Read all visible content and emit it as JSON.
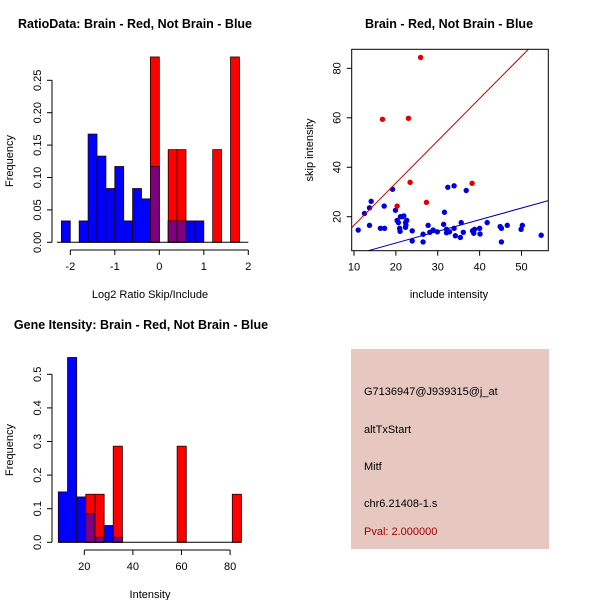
{
  "colors": {
    "brain": "#ff0000",
    "not_brain": "#0000ff",
    "overlap": "#7f007f",
    "panel_bg": "#e6c8c0",
    "pval": "#a00000"
  },
  "chart_data": [
    {
      "type": "bar",
      "title": "RatioData: Brain - Red, Not Brain - Blue",
      "xlabel": "Log2 Ratio Skip/Include",
      "ylabel": "Frequency",
      "xlim": [
        -2.3,
        2.0
      ],
      "ylim": [
        0,
        0.25
      ],
      "xticks": [
        -2,
        -1,
        0,
        1,
        2
      ],
      "xtick_labels": [
        "-2",
        "-1",
        "0",
        "1",
        "2"
      ],
      "yticks": [
        0,
        0.05,
        0.1,
        0.15,
        0.2,
        0.25
      ],
      "ytick_labels": [
        "0.00",
        "0.05",
        "0.10",
        "0.15",
        "0.20",
        "0.25"
      ],
      "series": [
        {
          "name": "Not Brain",
          "color": "blue",
          "bin_width": 0.2,
          "bin_starts": [
            -2.2,
            -1.8,
            -1.6,
            -1.4,
            -1.2,
            -1.0,
            -0.8,
            -0.6,
            -0.4,
            -0.2,
            0.2,
            0.4,
            0.6,
            0.8
          ],
          "values": [
            0.033,
            0.033,
            0.167,
            0.133,
            0.083,
            0.117,
            0.033,
            0.083,
            0.067,
            0.117,
            0.033,
            0.033,
            0.033,
            0.033
          ]
        },
        {
          "name": "Brain",
          "color": "red",
          "bin_width": 0.2,
          "bin_starts": [
            -0.2,
            0.2,
            0.4,
            1.2,
            1.6
          ],
          "values": [
            0.286,
            0.143,
            0.143,
            0.143,
            0.286
          ]
        }
      ]
    },
    {
      "type": "scatter",
      "title": "Brain - Red, Not Brain - Blue",
      "xlabel": "include intensity",
      "ylabel": "skip intensity",
      "xlim": [
        9.45,
        56.4
      ],
      "ylim": [
        6.25,
        87.7
      ],
      "xticks": [
        10,
        20,
        30,
        40,
        50
      ],
      "xtick_labels": [
        "10",
        "20",
        "30",
        "40",
        "50"
      ],
      "yticks": [
        20,
        40,
        60,
        80
      ],
      "ytick_labels": [
        "20",
        "40",
        "60",
        "80"
      ],
      "lines": [
        {
          "name": "Brain fit",
          "color": "#c00000",
          "slope": 1.71,
          "intercept": -0.6
        },
        {
          "name": "Not Brain fit",
          "color": "#0000aa",
          "slope": 0.471,
          "intercept": -0.06
        }
      ],
      "series": [
        {
          "name": "Brain",
          "color": "red",
          "x": [
            25.9,
            16.8,
            23.0,
            23.4,
            38.2,
            27.3,
            20.3
          ],
          "y": [
            84.4,
            59.4,
            59.8,
            33.9,
            33.5,
            25.8,
            24.3
          ]
        },
        {
          "name": "Not Brain",
          "color": "blue",
          "x": [
            11.0,
            12.5,
            13.7,
            14.1,
            13.7,
            16.3,
            17.3,
            17.2,
            19.2,
            19.9,
            20.3,
            20.6,
            20.9,
            21.0,
            21.1,
            21.6,
            21.9,
            22.3,
            22.4,
            22.3,
            22.6,
            23.9,
            23.9,
            26.5,
            26.5,
            27.7,
            28.1,
            28.9,
            29.9,
            31.4,
            31.6,
            32.1,
            32.1,
            32.4,
            32.8,
            33.9,
            33.9,
            34.2,
            35.4,
            35.6,
            36.1,
            36.8,
            38.3,
            38.6,
            38.8,
            40.0,
            40.1,
            41.8,
            44.9,
            45.2,
            45.2,
            46.6,
            49.9,
            50.2,
            54.7
          ],
          "y": [
            14.6,
            21.3,
            23.6,
            26.2,
            16.5,
            15.3,
            15.3,
            24.3,
            31.1,
            22.6,
            18.5,
            17.6,
            15.3,
            14.1,
            20.0,
            20.0,
            20.3,
            17.6,
            16.6,
            15.7,
            18.5,
            14.3,
            10.2,
            12.9,
            9.8,
            16.5,
            13.7,
            14.6,
            13.9,
            16.9,
            21.8,
            14.9,
            13.5,
            31.9,
            13.9,
            32.5,
            15.3,
            12.3,
            11.6,
            17.6,
            13.7,
            30.6,
            14.3,
            13.3,
            14.9,
            15.3,
            13.0,
            17.6,
            16.0,
            9.8,
            15.3,
            16.5,
            14.9,
            16.5,
            12.5
          ]
        }
      ]
    },
    {
      "type": "bar",
      "title": "Gene Itensity: Brain - Red, Not Brain - Blue",
      "xlabel": "Intensity",
      "ylabel": "Frequency",
      "xlim": [
        9.3,
        84.6
      ],
      "ylim": [
        0,
        0.5
      ],
      "xticks": [
        20,
        40,
        60,
        80
      ],
      "xtick_labels": [
        "20",
        "40",
        "60",
        "80"
      ],
      "yticks": [
        0,
        0.1,
        0.2,
        0.3,
        0.4,
        0.5
      ],
      "ytick_labels": [
        "0.0",
        "0.1",
        "0.2",
        "0.3",
        "0.4",
        "0.5"
      ],
      "series": [
        {
          "name": "Not Brain",
          "color": "blue",
          "bin_width": 3.77,
          "bin_starts": [
            9.3,
            13.1,
            16.9,
            20.6,
            24.4,
            28.2,
            31.9
          ],
          "values": [
            0.15,
            0.55,
            0.135,
            0.085,
            0.015,
            0.05,
            0.015
          ]
        },
        {
          "name": "Brain",
          "color": "red",
          "bin_width": 3.77,
          "bin_starts": [
            20.6,
            24.4,
            31.9,
            58.2,
            80.9
          ],
          "values": [
            0.143,
            0.143,
            0.286,
            0.286,
            0.143
          ]
        }
      ]
    }
  ],
  "info_panel": {
    "probe_id": "G7136947@J939315@j_at",
    "event_type": "altTxStart",
    "gene": "Mitf",
    "location": "chr6.21408-1.s",
    "pval": "Pval: 2.000000"
  }
}
